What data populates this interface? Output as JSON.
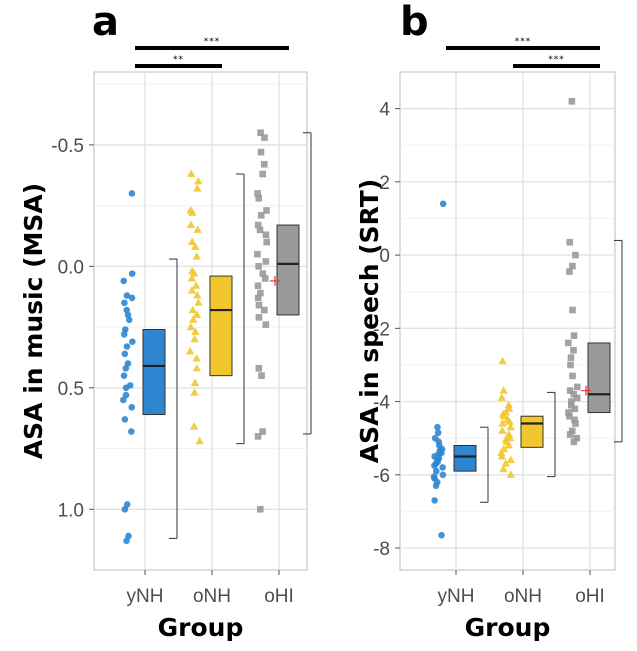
{
  "chart_data": [
    {
      "panel_label": "a",
      "type": "box-strip",
      "xlabel": "Group",
      "ylabel": "ASA in music (MSA)",
      "y_reversed": true,
      "ylim": [
        -0.8,
        1.25
      ],
      "yticks": [
        -0.5,
        0.0,
        0.5,
        1.0
      ],
      "ytick_labels": [
        "-0.5",
        "0.0",
        "0.5",
        "1.0"
      ],
      "categories": [
        "yNH",
        "oNH",
        "oHI"
      ],
      "groups": [
        {
          "name": "yNH",
          "color": "#2e86d1",
          "marker": "circle",
          "box": {
            "q1": 0.26,
            "median": 0.41,
            "q3": 0.61,
            "whisker_low": -0.03,
            "whisker_high": 1.12
          },
          "points": [
            -0.3,
            0.03,
            0.06,
            0.12,
            0.13,
            0.15,
            0.18,
            0.2,
            0.22,
            0.26,
            0.28,
            0.31,
            0.33,
            0.36,
            0.4,
            0.42,
            0.45,
            0.49,
            0.5,
            0.53,
            0.55,
            0.58,
            0.63,
            0.68,
            0.98,
            1.0,
            1.11,
            1.13
          ]
        },
        {
          "name": "oNH",
          "color": "#f2c72e",
          "marker": "triangle",
          "box": {
            "q1": 0.04,
            "median": 0.18,
            "q3": 0.45,
            "whisker_low": -0.38,
            "whisker_high": 0.73
          },
          "points": [
            -0.38,
            -0.35,
            -0.32,
            -0.23,
            -0.22,
            -0.17,
            -0.15,
            -0.1,
            -0.08,
            -0.04,
            0.02,
            0.03,
            0.05,
            0.08,
            0.1,
            0.12,
            0.15,
            0.18,
            0.2,
            0.22,
            0.25,
            0.27,
            0.3,
            0.35,
            0.38,
            0.42,
            0.48,
            0.52,
            0.66,
            0.72
          ]
        },
        {
          "name": "oHI",
          "color": "#999999",
          "marker": "square",
          "box": {
            "q1": -0.17,
            "median": -0.01,
            "q3": 0.2,
            "whisker_low": -0.55,
            "whisker_high": 0.69
          },
          "mean": 0.06,
          "points": [
            -0.55,
            -0.53,
            -0.47,
            -0.42,
            -0.38,
            -0.3,
            -0.28,
            -0.23,
            -0.21,
            -0.17,
            -0.15,
            -0.13,
            -0.1,
            -0.05,
            -0.02,
            0.0,
            0.03,
            0.05,
            0.08,
            0.11,
            0.13,
            0.16,
            0.18,
            0.21,
            0.24,
            0.42,
            0.45,
            0.68,
            0.7,
            1.0
          ]
        }
      ],
      "significance": [
        {
          "from": "yNH",
          "to": "oHI",
          "label": "***"
        },
        {
          "from": "yNH",
          "to": "oNH",
          "label": "**"
        }
      ]
    },
    {
      "panel_label": "b",
      "type": "box-strip",
      "xlabel": "Group",
      "ylabel": "ASA in speech (SRT)",
      "y_reversed": false,
      "ylim": [
        -8.6,
        5.0
      ],
      "yticks": [
        -8,
        -6,
        -4,
        -2,
        0,
        2,
        4
      ],
      "ytick_labels": [
        "-8",
        "-6",
        "-4",
        "-2",
        "0",
        "2",
        "4"
      ],
      "categories": [
        "yNH",
        "oNH",
        "oHI"
      ],
      "groups": [
        {
          "name": "yNH",
          "color": "#2e86d1",
          "marker": "circle",
          "box": {
            "q1": -5.9,
            "median": -5.5,
            "q3": -5.2,
            "whisker_low": -6.75,
            "whisker_high": -4.7
          },
          "points": [
            1.4,
            -4.7,
            -4.85,
            -5.0,
            -5.1,
            -5.2,
            -5.3,
            -5.35,
            -5.4,
            -5.45,
            -5.5,
            -5.55,
            -5.6,
            -5.65,
            -5.7,
            -5.75,
            -5.8,
            -5.9,
            -6.0,
            -6.05,
            -6.1,
            -6.2,
            -6.3,
            -6.7,
            -7.65
          ]
        },
        {
          "name": "oNH",
          "color": "#f2c72e",
          "marker": "triangle",
          "box": {
            "q1": -5.25,
            "median": -4.6,
            "q3": -4.4,
            "whisker_low": -6.05,
            "whisker_high": -3.75
          },
          "points": [
            -2.9,
            -3.7,
            -3.9,
            -4.1,
            -4.2,
            -4.3,
            -4.35,
            -4.4,
            -4.5,
            -4.55,
            -4.6,
            -4.7,
            -4.8,
            -4.9,
            -5.0,
            -5.05,
            -5.1,
            -5.2,
            -5.3,
            -5.4,
            -5.5,
            -5.6,
            -5.7,
            -5.85,
            -6.0
          ]
        },
        {
          "name": "oHI",
          "color": "#999999",
          "marker": "square",
          "box": {
            "q1": -4.3,
            "median": -3.8,
            "q3": -2.4,
            "whisker_low": -5.1,
            "whisker_high": 0.4
          },
          "mean": -3.7,
          "points": [
            4.2,
            0.35,
            0.0,
            -0.3,
            -0.45,
            -1.5,
            -2.2,
            -2.4,
            -2.6,
            -2.8,
            -3.0,
            -3.3,
            -3.6,
            -3.7,
            -3.8,
            -3.9,
            -4.0,
            -4.1,
            -4.2,
            -4.3,
            -4.4,
            -4.5,
            -4.6,
            -4.8,
            -4.9,
            -5.0,
            -5.1
          ]
        }
      ],
      "significance": [
        {
          "from": "yNH",
          "to": "oHI",
          "label": "***"
        },
        {
          "from": "oNH",
          "to": "oHI",
          "label": "***"
        }
      ]
    }
  ]
}
